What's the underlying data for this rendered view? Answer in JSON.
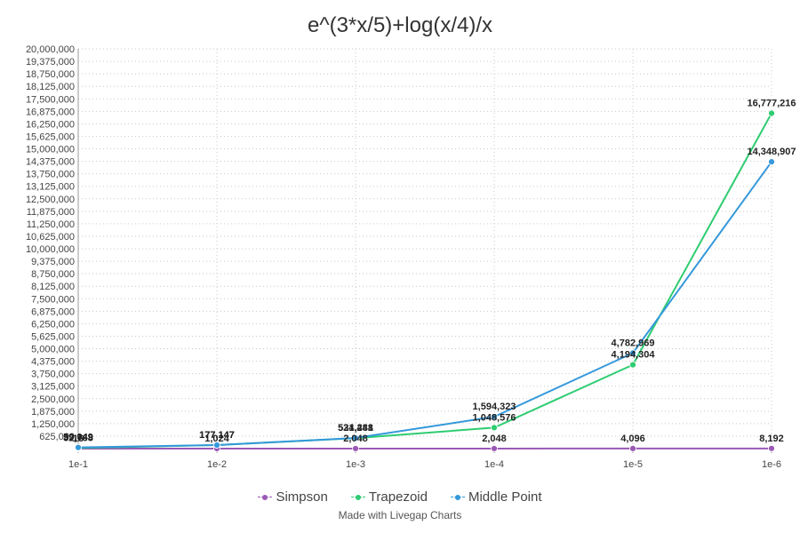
{
  "chart_data": {
    "type": "line",
    "title": "e^(3*x/5)+log(x/4)/x",
    "xlabel": "",
    "ylabel": "",
    "categories": [
      "1e-1",
      "1e-2",
      "1e-3",
      "1e-4",
      "1e-5",
      "1e-6"
    ],
    "ylim": [
      0,
      20000000
    ],
    "yticks": [
      "625,000",
      "1,250,000",
      "1,875,000",
      "2,500,000",
      "3,125,000",
      "3,750,000",
      "4,375,000",
      "5,000,000",
      "5,625,000",
      "6,250,000",
      "6,875,000",
      "7,500,000",
      "8,125,000",
      "8,750,000",
      "9,375,000",
      "10,000,000",
      "10,625,000",
      "11,250,000",
      "11,875,000",
      "12,500,000",
      "13,125,000",
      "13,750,000",
      "14,375,000",
      "15,000,000",
      "15,625,000",
      "16,250,000",
      "16,875,000",
      "17,500,000",
      "18,125,000",
      "18,750,000",
      "19,375,000",
      "20,000,000"
    ],
    "ytick_values": [
      625000,
      1250000,
      1875000,
      2500000,
      3125000,
      3750000,
      4375000,
      5000000,
      5625000,
      6250000,
      6875000,
      7500000,
      8125000,
      8750000,
      9375000,
      10000000,
      10625000,
      11250000,
      11875000,
      12500000,
      13125000,
      13750000,
      14375000,
      15000000,
      15625000,
      16250000,
      16875000,
      17500000,
      18125000,
      18750000,
      19375000,
      20000000
    ],
    "grid": true,
    "legend_position": "bottom",
    "series": [
      {
        "name": "Simpson",
        "color": "#9b59b6",
        "values": [
          16,
          1024,
          2048,
          2048,
          4096,
          8192
        ],
        "labels": [
          "16",
          "1,024",
          "2,048",
          "2,048",
          "4,096",
          "8,192"
        ]
      },
      {
        "name": "Trapezoid",
        "color": "#2ecc71",
        "values": [
          32768,
          177147,
          524288,
          1048576,
          4194304,
          16777216
        ],
        "labels": [
          "32,768",
          "177,147",
          "524,288",
          "1,048,576",
          "4,194,304",
          "16,777,216"
        ]
      },
      {
        "name": "Middle Point",
        "color": "#3498db",
        "values": [
          59049,
          177147,
          531441,
          1594323,
          4782969,
          14348907
        ],
        "labels": [
          "59,049",
          "177,147",
          "531,441",
          "1,594,323",
          "4,782,969",
          "14,348,907"
        ]
      }
    ]
  },
  "footer": {
    "credit": "Made with Livegap Charts"
  }
}
